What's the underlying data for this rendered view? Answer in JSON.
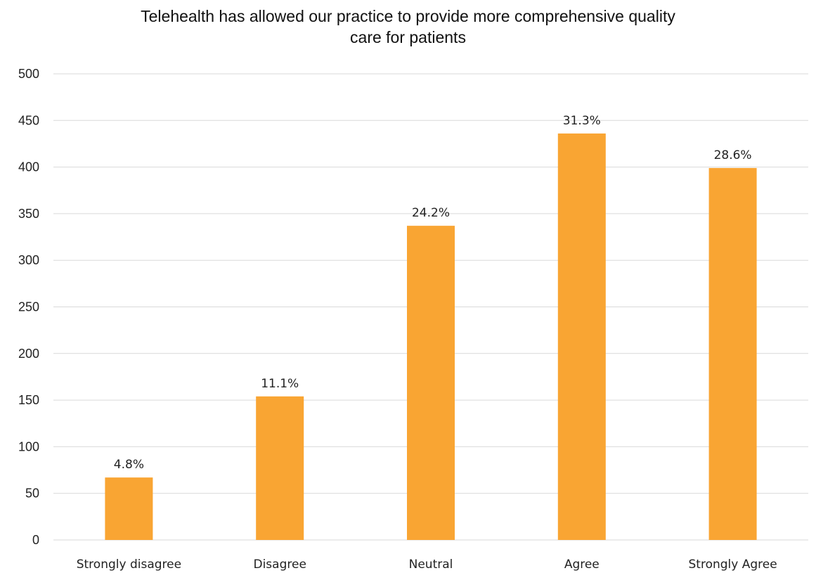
{
  "chart_data": {
    "type": "bar",
    "title_lines": [
      "Telehealth has allowed our practice to provide more comprehensive quality",
      "care for patients"
    ],
    "categories": [
      "Strongly disagree",
      "Disagree",
      "Neutral",
      "Agree",
      "Strongly Agree"
    ],
    "values": [
      67,
      154,
      337,
      436,
      399
    ],
    "data_labels": [
      "4.8%",
      "11.1%",
      "24.2%",
      "31.3%",
      "28.6%"
    ],
    "yticks": [
      "0",
      "50",
      "100",
      "150",
      "200",
      "250",
      "300",
      "350",
      "400",
      "450",
      "500"
    ],
    "ylim": [
      0,
      500
    ],
    "xlabel": "",
    "ylabel": "",
    "grid": true,
    "legend": "none",
    "bar_color": "#F9A533",
    "grid_color": "#D9D9D9",
    "text_color": "#222222"
  }
}
